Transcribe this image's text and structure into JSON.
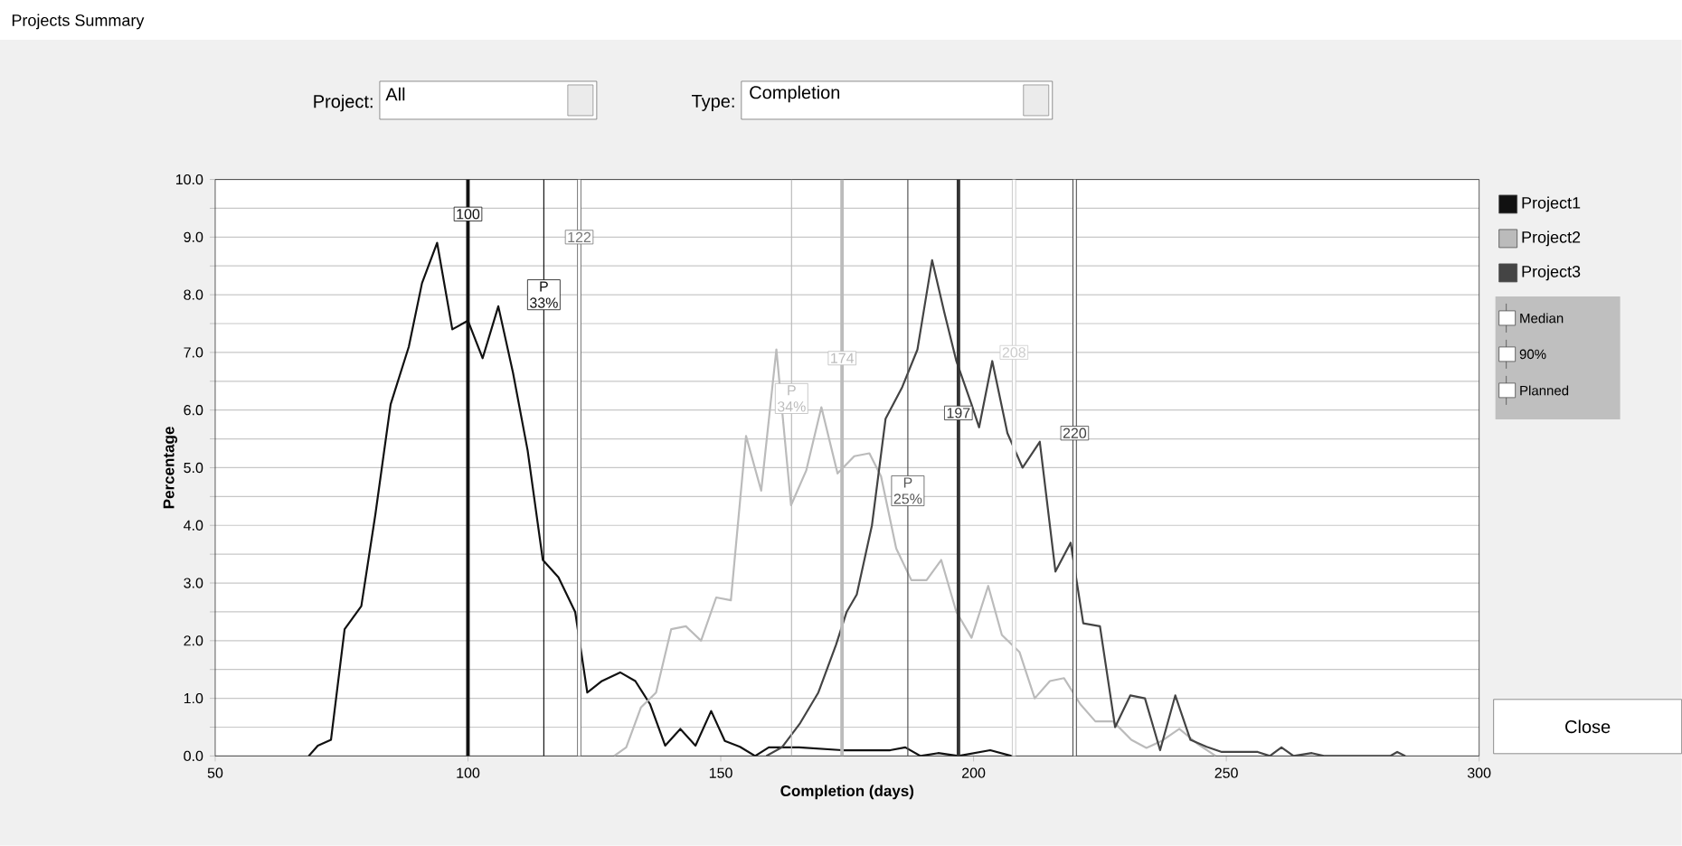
{
  "chart_data": {
    "type": "line",
    "title": "Projects Summary",
    "xlabel": "Completion (days)",
    "ylabel": "Percentage",
    "xlim": [
      50,
      300
    ],
    "xticks": [
      50,
      100,
      150,
      200,
      250,
      300
    ],
    "ylim": [
      0,
      10
    ],
    "yticks": [
      {
        "value": 0,
        "label": "0.0"
      },
      {
        "value": 0.5,
        "label": null
      },
      {
        "value": 1,
        "label": "1.0"
      },
      {
        "value": 1.5,
        "label": null
      },
      {
        "value": 2,
        "label": "2.0"
      },
      {
        "value": 2.5,
        "label": null
      },
      {
        "value": 3,
        "label": "3.0"
      },
      {
        "value": 3.5,
        "label": null
      },
      {
        "value": 4,
        "label": "4.0"
      },
      {
        "value": 4.5,
        "label": null
      },
      {
        "value": 5,
        "label": "5.0"
      },
      {
        "value": 5.5,
        "label": null
      },
      {
        "value": 6,
        "label": "6.0"
      },
      {
        "value": 6.5,
        "label": null
      },
      {
        "value": 7,
        "label": "7.0"
      },
      {
        "value": 7.5,
        "label": null
      },
      {
        "value": 8,
        "label": "8.0"
      },
      {
        "value": 8.5,
        "label": null
      },
      {
        "value": 9,
        "label": "9.0"
      },
      {
        "value": 9.5,
        "label": null
      },
      {
        "value": 10,
        "label": "10.0"
      }
    ],
    "grid": "y",
    "legend": "right",
    "line_style": "solid",
    "series": [
      {
        "name": "Project1",
        "color": "#111111",
        "x": [
          68.5,
          70.3,
          72.9,
          75.6,
          78.9,
          81.7,
          84.7,
          88.3,
          90.9,
          93.9,
          96.9,
          100,
          102.9,
          106,
          108.9,
          111.8,
          114.8,
          117.9,
          121.2,
          123.6,
          126.5,
          130.1,
          133.1,
          136,
          139,
          142,
          145,
          148.1,
          150.8,
          153.8,
          156.8,
          159.5,
          165.5,
          174,
          183.5,
          186.5,
          189.5,
          193,
          197,
          203.3,
          207.5
        ],
        "values": [
          0,
          0.18,
          0.28,
          2.2,
          2.6,
          4.2,
          6.1,
          7.1,
          8.2,
          8.9,
          7.4,
          7.55,
          6.9,
          7.8,
          6.65,
          5.3,
          3.4,
          3.1,
          2.5,
          1.1,
          1.3,
          1.45,
          1.3,
          0.9,
          0.18,
          0.47,
          0.18,
          0.78,
          0.26,
          0.16,
          0,
          0.15,
          0.15,
          0.1,
          0.1,
          0.15,
          0,
          0.05,
          0,
          0.1,
          0
        ]
      },
      {
        "name": "Project2",
        "color": "#bbbbbb",
        "x": [
          128.9,
          131.3,
          134.2,
          137.2,
          140.2,
          143.1,
          146.1,
          149.1,
          152,
          155,
          158,
          161,
          163.9,
          166.9,
          169.9,
          173.1,
          176.4,
          179.4,
          181.7,
          184.7,
          187.7,
          190.7,
          193.6,
          196.6,
          199.6,
          202.9,
          205.6,
          209.1,
          212.1,
          215.1,
          217.9,
          221.1,
          224.1,
          227.6,
          231.2,
          234.2,
          237.2,
          240.7,
          244.3,
          247.9
        ],
        "values": [
          0,
          0.15,
          0.84,
          1.1,
          2.2,
          2.25,
          2.0,
          2.75,
          2.7,
          5.55,
          4.6,
          7.05,
          4.35,
          4.95,
          6.05,
          4.9,
          5.2,
          5.25,
          4.85,
          3.6,
          3.05,
          3.05,
          3.4,
          2.5,
          2.05,
          2.95,
          2.1,
          1.8,
          1.0,
          1.3,
          1.35,
          0.9,
          0.6,
          0.6,
          0.28,
          0.14,
          0.26,
          0.47,
          0.21,
          0
        ]
      },
      {
        "name": "Project3",
        "color": "#444444",
        "x": [
          159,
          162.1,
          165.7,
          169.3,
          172.8,
          174.9,
          176.9,
          179.9,
          182.6,
          185.9,
          188.9,
          191.8,
          194.2,
          196.6,
          199.6,
          201.1,
          203.7,
          206.7,
          209.7,
          213.1,
          216.2,
          219.2,
          221.7,
          225,
          228,
          231,
          233.9,
          236.9,
          239.9,
          242.9,
          246.1,
          249.1,
          256.2,
          258.6,
          260.9,
          263.3,
          266.9,
          269.3,
          282.4,
          283.8,
          285.4
        ],
        "values": [
          0,
          0.15,
          0.57,
          1.1,
          1.93,
          2.5,
          2.8,
          4.0,
          5.85,
          6.4,
          7.05,
          8.6,
          7.7,
          6.85,
          6.1,
          5.7,
          6.85,
          5.6,
          5.0,
          5.45,
          3.2,
          3.7,
          2.3,
          2.25,
          0.5,
          1.05,
          1.0,
          0.1,
          1.05,
          0.28,
          0.16,
          0.07,
          0.07,
          0,
          0.15,
          0,
          0.05,
          0,
          0,
          0.07,
          0
        ]
      }
    ],
    "ref_lines": [
      {
        "axis": "x",
        "value": 100,
        "label": "100",
        "color": "#111111"
      },
      {
        "axis": "x",
        "value": 122,
        "label": "122",
        "color": "#777777"
      },
      {
        "axis": "x",
        "value": 115,
        "label": "P 33%",
        "color": "#111111"
      },
      {
        "axis": "x",
        "value": 174,
        "label": "174",
        "color": "#bbbbbb"
      },
      {
        "axis": "x",
        "value": 208,
        "label": "208",
        "color": "#cccccc"
      },
      {
        "axis": "x",
        "value": 164,
        "label": "P 34%",
        "color": "#bbbbbb"
      },
      {
        "axis": "x",
        "value": 197,
        "label": "197",
        "color": "#333333"
      },
      {
        "axis": "x",
        "value": 220,
        "label": "220",
        "color": "#444444"
      },
      {
        "axis": "x",
        "value": 187,
        "label": "P 25%",
        "color": "#555555"
      }
    ],
    "annotations": [
      "Project:",
      "All",
      "Type:",
      "Completion",
      "Close",
      "Median",
      "90%",
      "Planned"
    ]
  }
}
